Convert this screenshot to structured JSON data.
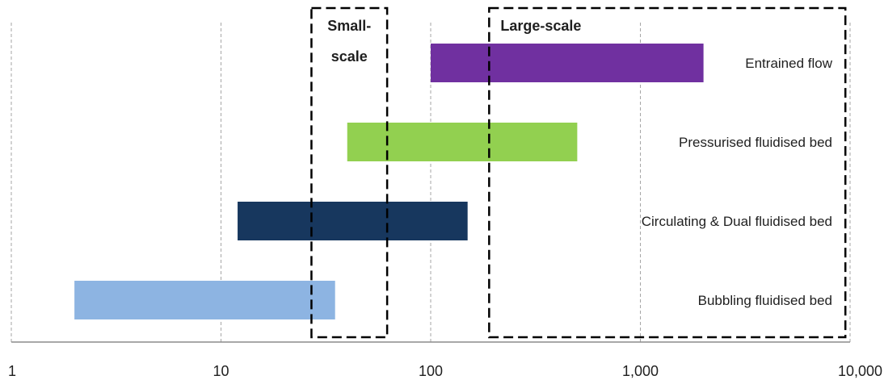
{
  "chart_data": {
    "type": "bar",
    "orientation": "horizontal",
    "x_scale": "log",
    "xlim": [
      1,
      10000
    ],
    "x_ticks": [
      1,
      10,
      100,
      1000,
      10000
    ],
    "x_tick_labels": [
      "1",
      "10",
      "100",
      "1,000",
      "10,000"
    ],
    "grid": "vertical dashed",
    "categories": [
      "Entrained flow",
      "Pressurised fluidised bed",
      "Circulating & Dual fluidised bed",
      "Bubbling fluidised bed"
    ],
    "ranges": [
      {
        "category": "Entrained flow",
        "start": 100,
        "end": 2000,
        "color": "#7030a0"
      },
      {
        "category": "Pressurised fluidised bed",
        "start": 40,
        "end": 500,
        "color": "#92d050"
      },
      {
        "category": "Circulating & Dual fluidised bed",
        "start": 12,
        "end": 150,
        "color": "#17375e"
      },
      {
        "category": "Bubbling fluidised bed",
        "start": 2,
        "end": 35,
        "color": "#8db4e2"
      }
    ],
    "regions": [
      {
        "label_lines": [
          "Small-",
          "scale"
        ],
        "start": 27,
        "end": 62
      },
      {
        "label_lines": [
          "Large-scale"
        ],
        "start": 190,
        "end": 9500
      }
    ]
  }
}
